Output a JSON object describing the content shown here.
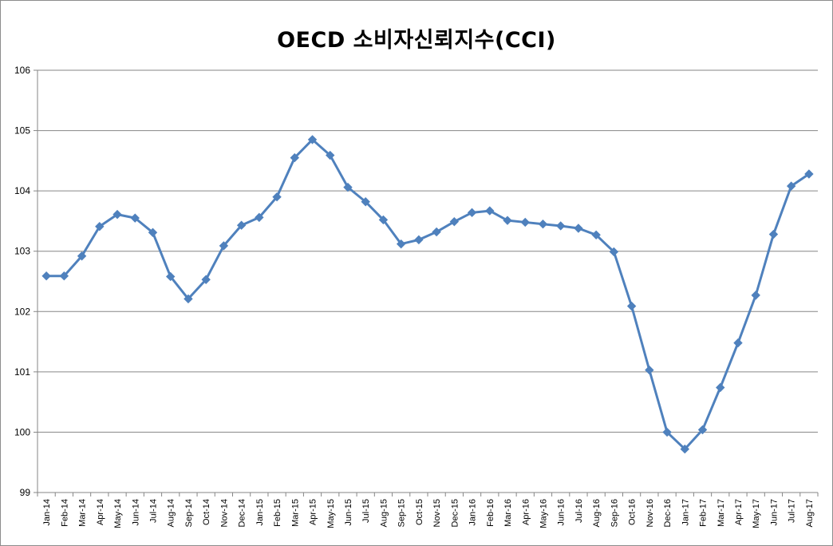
{
  "chart_data": {
    "type": "line",
    "title": "OECD 소비자신뢰지수(CCI)",
    "xlabel": "",
    "ylabel": "",
    "ylim": [
      99,
      106
    ],
    "yticks": [
      99,
      100,
      101,
      102,
      103,
      104,
      105,
      106
    ],
    "grid": true,
    "legend": "none",
    "categories": [
      "Jan-14",
      "Feb-14",
      "Mar-14",
      "Apr-14",
      "May-14",
      "Jun-14",
      "Jul-14",
      "Aug-14",
      "Sep-14",
      "Oct-14",
      "Nov-14",
      "Dec-14",
      "Jan-15",
      "Feb-15",
      "Mar-15",
      "Apr-15",
      "May-15",
      "Jun-15",
      "Jul-15",
      "Aug-15",
      "Sep-15",
      "Oct-15",
      "Nov-15",
      "Dec-15",
      "Jan-16",
      "Feb-16",
      "Mar-16",
      "Apr-16",
      "May-16",
      "Jun-16",
      "Jul-16",
      "Aug-16",
      "Sep-16",
      "Oct-16",
      "Nov-16",
      "Dec-16",
      "Jan-17",
      "Feb-17",
      "Mar-17",
      "Apr-17",
      "May-17",
      "Jun-17",
      "Jul-17",
      "Aug-17"
    ],
    "series": [
      {
        "values": [
          102.59,
          102.59,
          102.92,
          103.41,
          103.61,
          103.55,
          103.31,
          102.58,
          102.21,
          102.53,
          103.09,
          103.43,
          103.56,
          103.9,
          104.55,
          104.85,
          104.59,
          104.06,
          103.82,
          103.52,
          103.12,
          103.19,
          103.32,
          103.49,
          103.64,
          103.67,
          103.51,
          103.48,
          103.45,
          103.42,
          103.38,
          103.27,
          102.99,
          102.09,
          101.03,
          100.0,
          99.72,
          100.04,
          100.74,
          101.48,
          102.27,
          103.28,
          104.08,
          104.28
        ],
        "color": "#4f81bd"
      }
    ]
  },
  "colors": {
    "line": "#4f81bd",
    "grid": "#868686",
    "axis": "#868686"
  }
}
